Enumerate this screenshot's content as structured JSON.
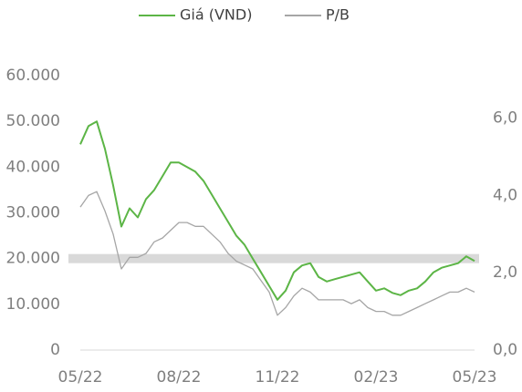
{
  "chart_data": {
    "type": "line",
    "x": [
      0,
      0.25,
      0.5,
      0.75,
      1,
      1.25,
      1.5,
      1.75,
      2,
      2.25,
      2.5,
      2.75,
      3,
      3.25,
      3.5,
      3.75,
      4,
      4.25,
      4.5,
      4.75,
      5,
      5.25,
      5.5,
      5.75,
      6,
      6.25,
      6.5,
      6.75,
      7,
      7.25,
      7.5,
      7.75,
      8,
      8.25,
      8.5,
      8.75,
      9,
      9.25,
      9.5,
      9.75,
      10,
      10.25,
      10.5,
      10.75,
      11,
      11.25,
      11.5,
      11.75,
      12
    ],
    "xlim": [
      0,
      12
    ],
    "xticks": [
      {
        "value": 0,
        "label": "05/22"
      },
      {
        "value": 3,
        "label": "08/22"
      },
      {
        "value": 6,
        "label": "11/22"
      },
      {
        "value": 9,
        "label": "02/23"
      },
      {
        "value": 12,
        "label": "05/23"
      }
    ],
    "ylim": [
      0,
      60000
    ],
    "yticks": [
      0,
      {
        "value": 10000,
        "label": "10.000"
      },
      {
        "value": 20000,
        "label": "20.000"
      },
      {
        "value": 30000,
        "label": "30.000"
      },
      {
        "value": 40000,
        "label": "40.000"
      },
      {
        "value": 50000,
        "label": "50.000"
      },
      {
        "value": 60000,
        "label": "60.000"
      }
    ],
    "y2lim": [
      0,
      7.1
    ],
    "y2ticks": [
      {
        "value": 0,
        "label": "0,0"
      },
      {
        "value": 2,
        "label": "2,0"
      },
      {
        "value": 4,
        "label": "4,0"
      },
      {
        "value": 6,
        "label": "6,0"
      }
    ],
    "highlight_band": [
      19000,
      21000
    ],
    "band_color": "#d9d9d9",
    "series": [
      {
        "name": "Giá (VND)",
        "color": "#5cb546",
        "values": [
          45000,
          49000,
          50000,
          44000,
          36000,
          27000,
          31000,
          29000,
          33000,
          35000,
          38000,
          41000,
          41000,
          40000,
          39000,
          37000,
          34000,
          31000,
          28000,
          25000,
          23000,
          20000,
          17000,
          14000,
          11000,
          13000,
          17000,
          18500,
          19000,
          16000,
          15000,
          15500,
          16000,
          16500,
          17000,
          15000,
          13000,
          13500,
          12500,
          12000,
          13000,
          13500,
          15000,
          17000,
          18000,
          18500,
          19000,
          20500,
          19500
        ]
      },
      {
        "name": "P/B",
        "color": "#a6a6a6",
        "axis": "y2",
        "values": [
          3.7,
          4.0,
          4.1,
          3.6,
          3.0,
          2.1,
          2.4,
          2.4,
          2.5,
          2.8,
          2.9,
          3.1,
          3.3,
          3.3,
          3.2,
          3.2,
          3.0,
          2.8,
          2.5,
          2.3,
          2.2,
          2.1,
          1.8,
          1.5,
          0.9,
          1.1,
          1.4,
          1.6,
          1.5,
          1.3,
          1.3,
          1.3,
          1.3,
          1.2,
          1.3,
          1.1,
          1.0,
          1.0,
          0.9,
          0.9,
          1.0,
          1.1,
          1.2,
          1.3,
          1.4,
          1.5,
          1.5,
          1.6,
          1.5
        ]
      }
    ]
  }
}
